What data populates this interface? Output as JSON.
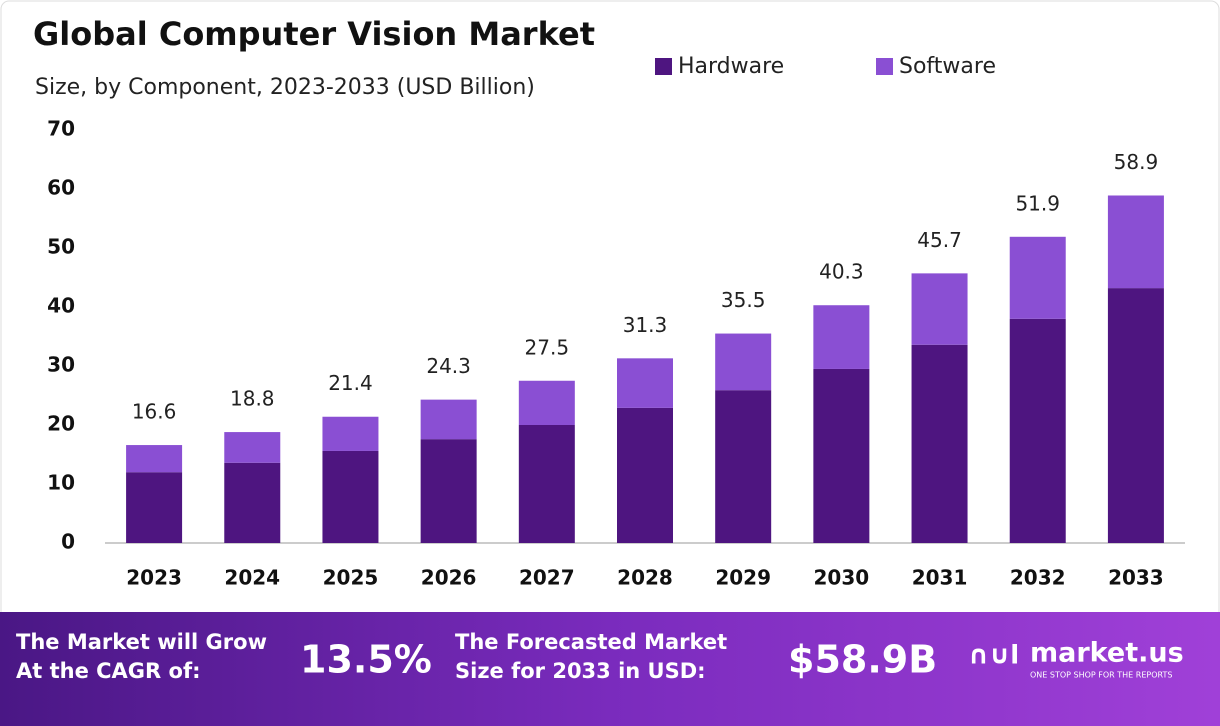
{
  "chart_data": {
    "type": "stacked_bar",
    "title": "Global Computer Vision Market",
    "subtitle": "Size, by Component, 2023-2033 (USD Billion)",
    "categories": [
      "2023",
      "2024",
      "2025",
      "2026",
      "2027",
      "2028",
      "2029",
      "2030",
      "2031",
      "2032",
      "2033"
    ],
    "series": [
      {
        "name": "Hardware",
        "color": "#4e1580",
        "values": [
          12.0,
          13.6,
          15.6,
          17.6,
          20.0,
          22.9,
          25.9,
          29.5,
          33.6,
          38.0,
          43.2
        ]
      },
      {
        "name": "Software",
        "color": "#8a4fd3",
        "values": [
          4.6,
          5.2,
          5.8,
          6.7,
          7.5,
          8.4,
          9.6,
          10.8,
          12.1,
          13.9,
          15.7
        ]
      }
    ],
    "totals": [
      16.6,
      18.8,
      21.4,
      24.3,
      27.5,
      31.3,
      35.5,
      40.3,
      45.7,
      51.9,
      58.9
    ],
    "ylim": [
      0,
      70
    ],
    "yticks": [
      0,
      10,
      20,
      30,
      40,
      50,
      60,
      70
    ]
  },
  "footer": {
    "cagr_text": "The Market will Grow At the CAGR of:",
    "cagr_value": "13.5%",
    "forecast_text": "The Forecasted Market Size for 2033 in USD:",
    "forecast_value": "$58.9B",
    "brand": "market.us",
    "tagline": "ONE STOP SHOP FOR THE REPORTS"
  }
}
